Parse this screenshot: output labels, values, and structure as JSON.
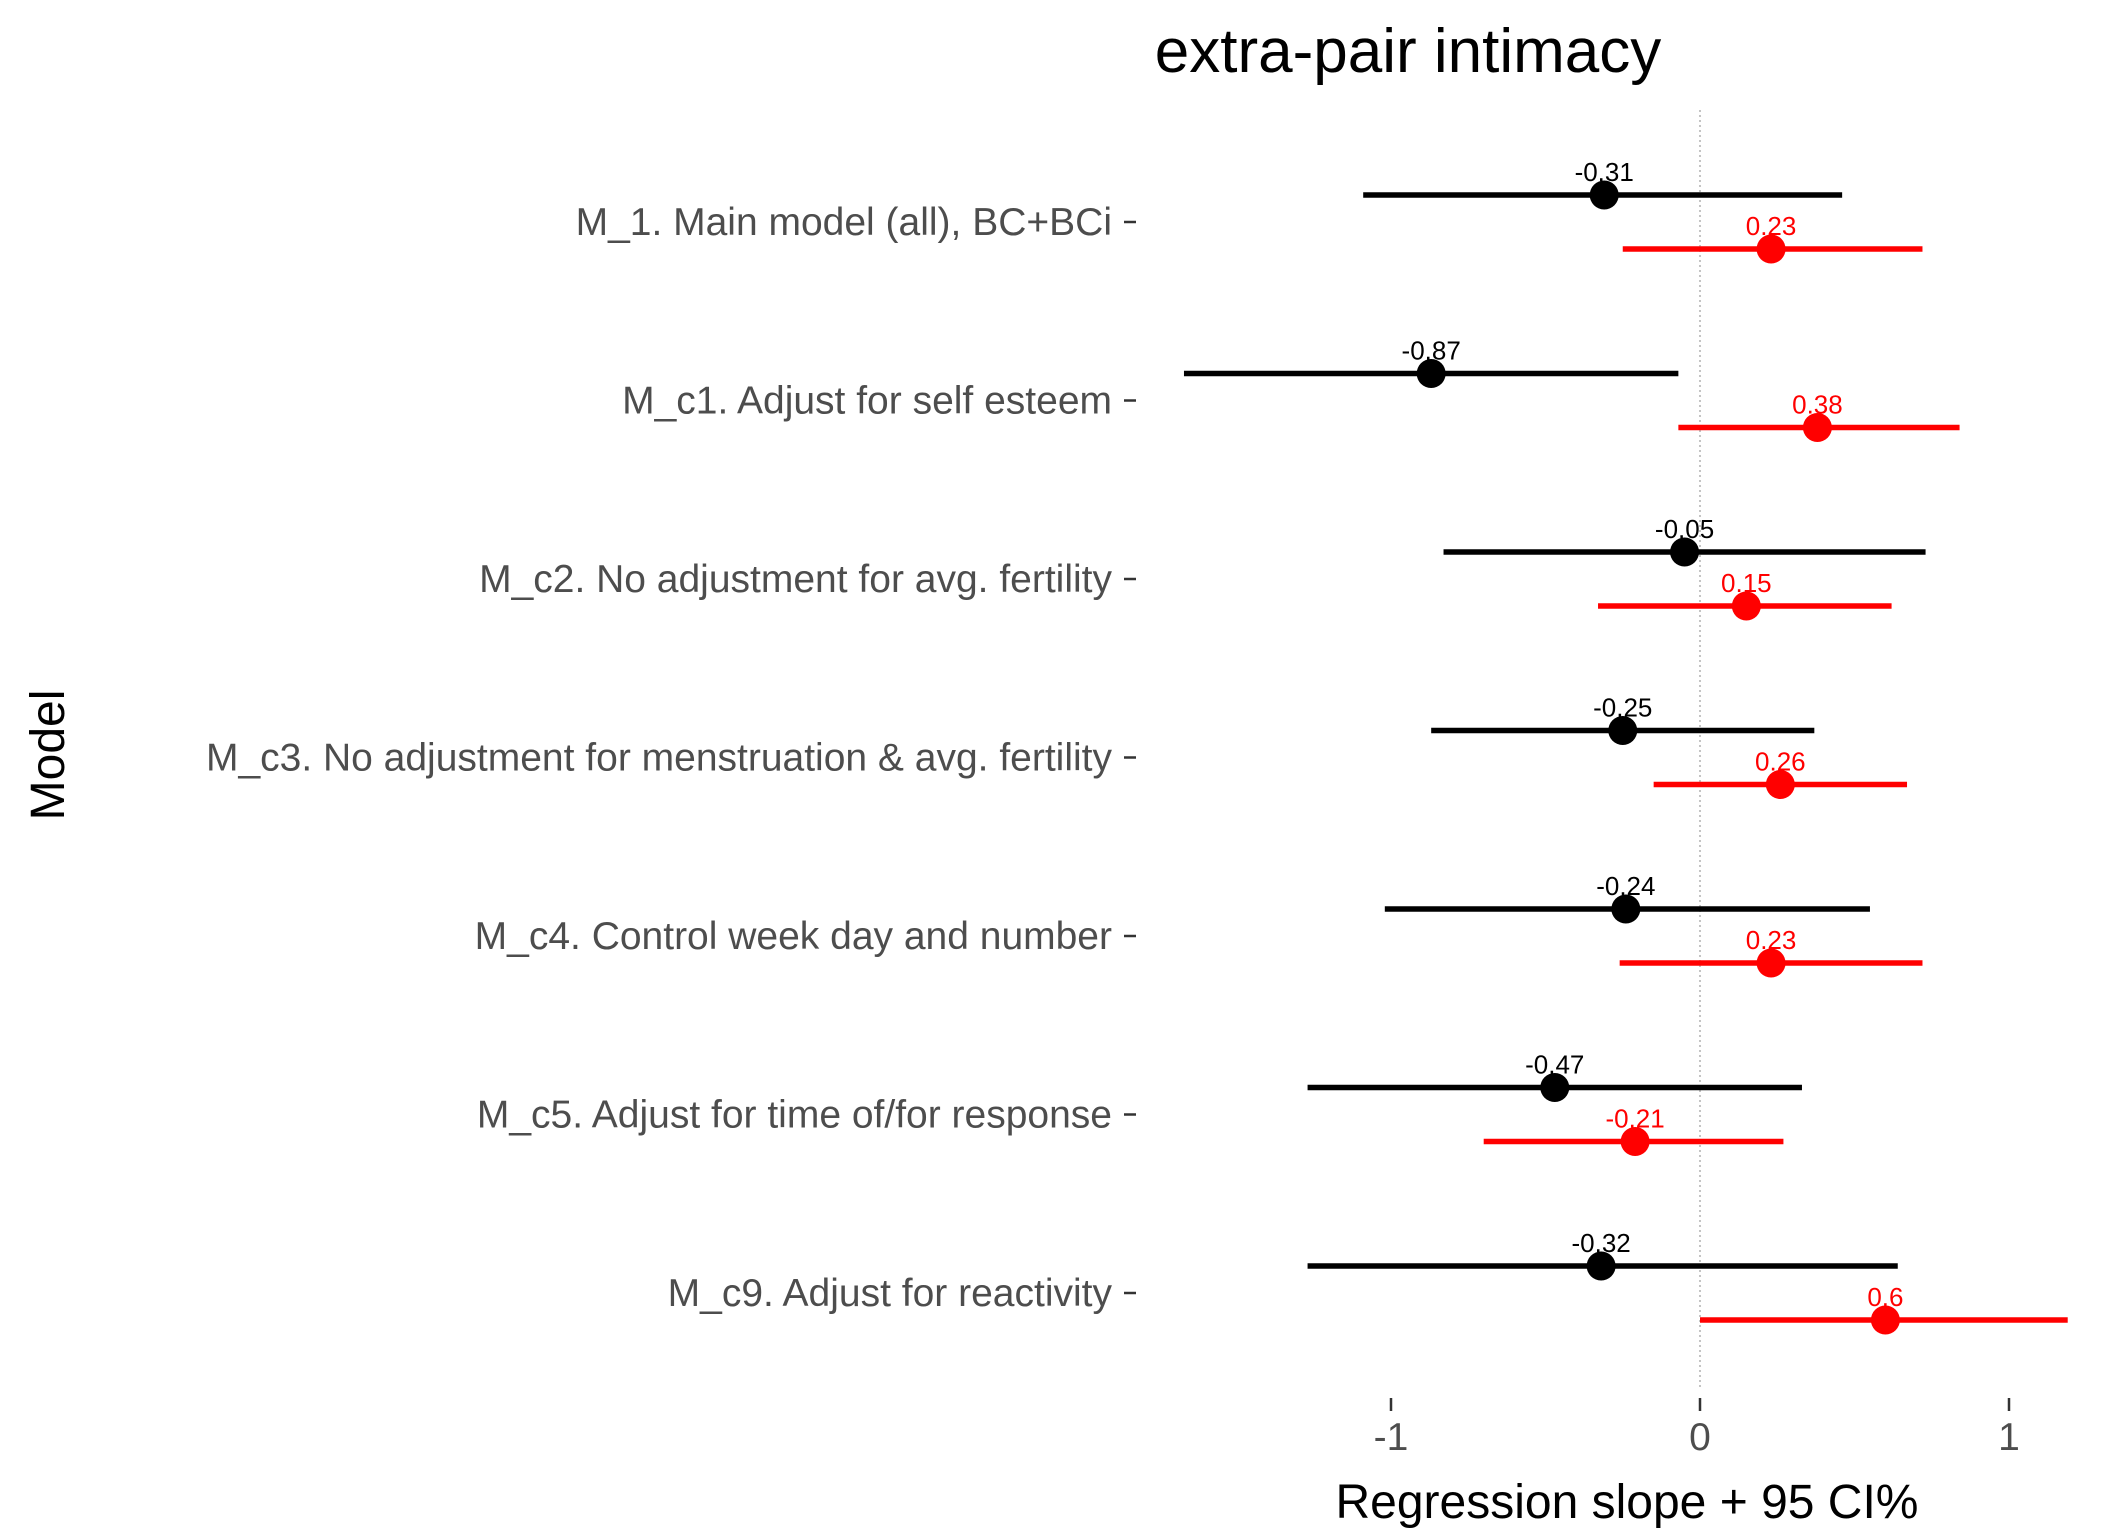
{
  "chart_data": {
    "type": "errorbar",
    "title": "extra-pair intimacy",
    "xlabel": "Regression slope + 95 CI%",
    "ylabel": "Model",
    "xlim": [
      -1.6,
      1.25
    ],
    "xticks": [
      -1,
      0,
      1
    ],
    "tick_labels": [
      "-1",
      "0",
      "1"
    ],
    "reference_line": 0,
    "grid": false,
    "legend": "none",
    "categories": [
      "M_1. Main model (all), BC+BCi",
      "M_c1. Adjust for self esteem",
      "M_c2. No adjustment for avg. fertility",
      "M_c3. No adjustment for menstruation & avg. fertility",
      "M_c4. Control week day and number",
      "M_c5. Adjust for time of/for response",
      "M_c9. Adjust for reactivity"
    ],
    "series": [
      {
        "color": "#000000",
        "estimates": [
          -0.31,
          -0.87,
          -0.05,
          -0.25,
          -0.24,
          -0.47,
          -0.32
        ],
        "lower": [
          -1.09,
          -1.67,
          -0.83,
          -0.87,
          -1.02,
          -1.27,
          -1.27
        ],
        "upper": [
          0.46,
          -0.07,
          0.73,
          0.37,
          0.55,
          0.33,
          0.64
        ],
        "labels": [
          "-0.31",
          "-0.87",
          "-0.05",
          "-0.25",
          "-0.24",
          "-0.47",
          "-0.32"
        ]
      },
      {
        "color": "#ff0000",
        "estimates": [
          0.23,
          0.38,
          0.15,
          0.26,
          0.23,
          -0.21,
          0.6
        ],
        "lower": [
          -0.25,
          -0.07,
          -0.33,
          -0.15,
          -0.26,
          -0.7,
          0.0
        ],
        "upper": [
          0.72,
          0.84,
          0.62,
          0.67,
          0.72,
          0.27,
          1.19
        ],
        "labels": [
          "0.23",
          "0.38",
          "0.15",
          "0.26",
          "0.23",
          "-0.21",
          "0.6"
        ]
      }
    ]
  }
}
